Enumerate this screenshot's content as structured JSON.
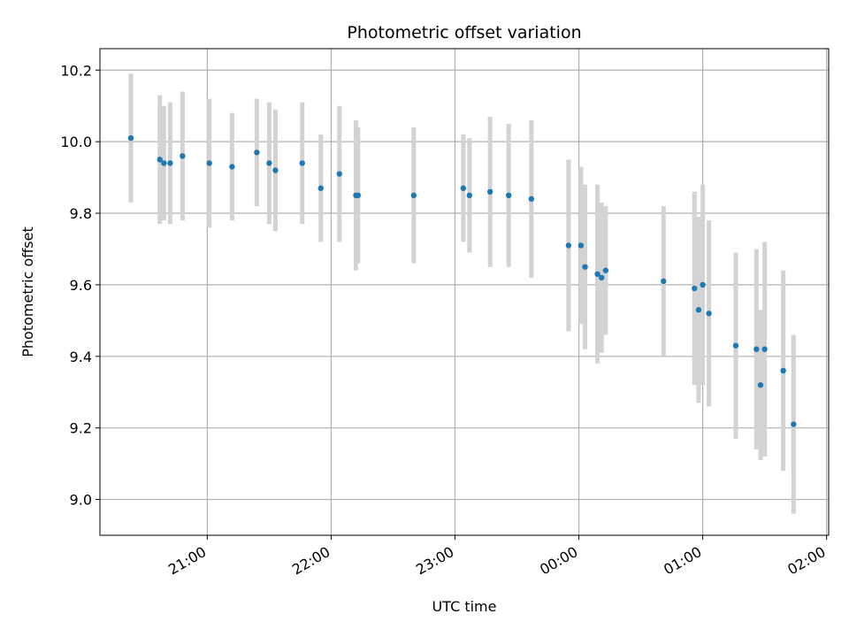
{
  "chart_data": {
    "type": "scatter",
    "title": "Photometric offset variation",
    "xlabel": "UTC time",
    "ylabel": "Photometric offset",
    "xlim": [
      "20:08",
      "02:01"
    ],
    "ylim": [
      8.9,
      10.26
    ],
    "x_ticks": [
      "21:00",
      "22:00",
      "23:00",
      "00:00",
      "01:00",
      "02:00"
    ],
    "y_ticks": [
      "9.0",
      "9.2",
      "9.4",
      "9.6",
      "9.8",
      "10.0",
      "10.2"
    ],
    "grid": true,
    "legend": "none",
    "colors": {
      "points": "#1f77b4",
      "errorbars": "#d3d3d3",
      "grid": "#b0b0b0"
    },
    "points": [
      {
        "x": "20:23",
        "y": 10.01,
        "err": 0.18
      },
      {
        "x": "20:37",
        "y": 9.95,
        "err": 0.18
      },
      {
        "x": "20:39",
        "y": 9.94,
        "err": 0.16
      },
      {
        "x": "20:42",
        "y": 9.94,
        "err": 0.17
      },
      {
        "x": "20:48",
        "y": 9.96,
        "err": 0.18
      },
      {
        "x": "21:01",
        "y": 9.94,
        "err": 0.18
      },
      {
        "x": "21:12",
        "y": 9.93,
        "err": 0.15
      },
      {
        "x": "21:24",
        "y": 9.97,
        "err": 0.15
      },
      {
        "x": "21:30",
        "y": 9.94,
        "err": 0.17
      },
      {
        "x": "21:33",
        "y": 9.92,
        "err": 0.17
      },
      {
        "x": "21:46",
        "y": 9.94,
        "err": 0.17
      },
      {
        "x": "21:55",
        "y": 9.87,
        "err": 0.15
      },
      {
        "x": "22:04",
        "y": 9.91,
        "err": 0.19
      },
      {
        "x": "22:12",
        "y": 9.85,
        "err": 0.21
      },
      {
        "x": "22:13",
        "y": 9.85,
        "err": 0.19
      },
      {
        "x": "22:40",
        "y": 9.85,
        "err": 0.19
      },
      {
        "x": "23:04",
        "y": 9.87,
        "err": 0.15
      },
      {
        "x": "23:07",
        "y": 9.85,
        "err": 0.16
      },
      {
        "x": "23:17",
        "y": 9.86,
        "err": 0.21
      },
      {
        "x": "23:26",
        "y": 9.85,
        "err": 0.2
      },
      {
        "x": "23:37",
        "y": 9.84,
        "err": 0.22
      },
      {
        "x": "23:55",
        "y": 9.71,
        "err": 0.24
      },
      {
        "x": "00:01",
        "y": 9.71,
        "err": 0.22
      },
      {
        "x": "00:03",
        "y": 9.65,
        "err": 0.23
      },
      {
        "x": "00:09",
        "y": 9.63,
        "err": 0.25
      },
      {
        "x": "00:11",
        "y": 9.62,
        "err": 0.21
      },
      {
        "x": "00:13",
        "y": 9.64,
        "err": 0.18
      },
      {
        "x": "00:41",
        "y": 9.61,
        "err": 0.21
      },
      {
        "x": "00:56",
        "y": 9.59,
        "err": 0.27
      },
      {
        "x": "00:58",
        "y": 9.53,
        "err": 0.26
      },
      {
        "x": "01:00",
        "y": 9.6,
        "err": 0.28
      },
      {
        "x": "01:03",
        "y": 9.52,
        "err": 0.26
      },
      {
        "x": "01:16",
        "y": 9.43,
        "err": 0.26
      },
      {
        "x": "01:26",
        "y": 9.42,
        "err": 0.28
      },
      {
        "x": "01:28",
        "y": 9.32,
        "err": 0.21
      },
      {
        "x": "01:30",
        "y": 9.42,
        "err": 0.3
      },
      {
        "x": "01:39",
        "y": 9.36,
        "err": 0.28
      },
      {
        "x": "01:44",
        "y": 9.21,
        "err": 0.25
      }
    ]
  }
}
